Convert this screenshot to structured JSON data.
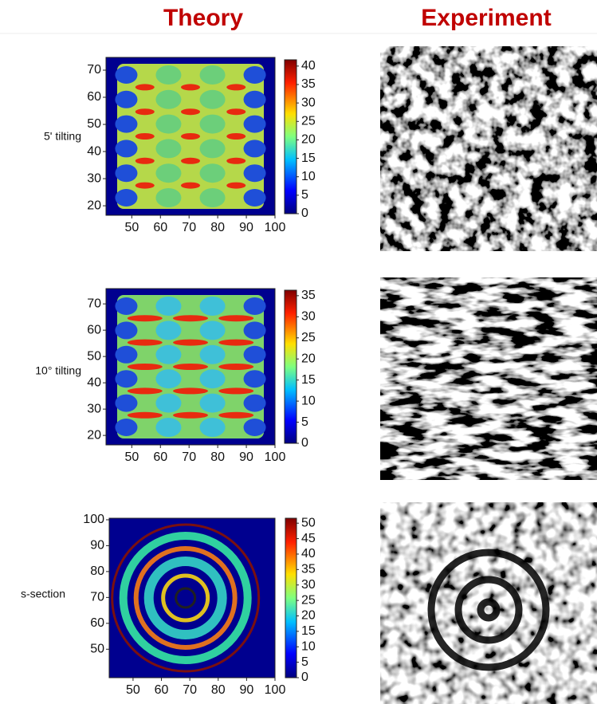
{
  "header": {
    "theory": "Theory",
    "experiment": "Experiment"
  },
  "panels": [
    {
      "label": "5' tilting",
      "xlim": [
        41,
        100
      ],
      "ylim": [
        16.5,
        74.7
      ],
      "xticks": [
        50,
        60,
        70,
        80,
        90,
        100
      ],
      "yticks": [
        20,
        30,
        40,
        50,
        60,
        70
      ],
      "clim": [
        0,
        41.7
      ],
      "cticks": [
        0,
        5,
        10,
        15,
        20,
        25,
        30,
        35,
        40
      ]
    },
    {
      "label": "10° tilting",
      "xlim": [
        41,
        100
      ],
      "ylim": [
        16.4,
        75.8
      ],
      "xticks": [
        50,
        60,
        70,
        80,
        90,
        100
      ],
      "yticks": [
        20,
        30,
        40,
        50,
        60,
        70
      ],
      "clim": [
        0,
        36.3
      ],
      "cticks": [
        0,
        5,
        10,
        15,
        20,
        25,
        30,
        35
      ]
    },
    {
      "label": "s-section",
      "xlim": [
        41.6,
        100
      ],
      "ylim": [
        39,
        100.6
      ],
      "xticks": [
        50,
        60,
        70,
        80,
        90,
        100
      ],
      "yticks": [
        50,
        60,
        70,
        80,
        90,
        100
      ],
      "clim": [
        0,
        51.6
      ],
      "cticks": [
        0,
        5,
        10,
        15,
        20,
        25,
        30,
        35,
        40,
        45,
        50
      ]
    }
  ]
}
